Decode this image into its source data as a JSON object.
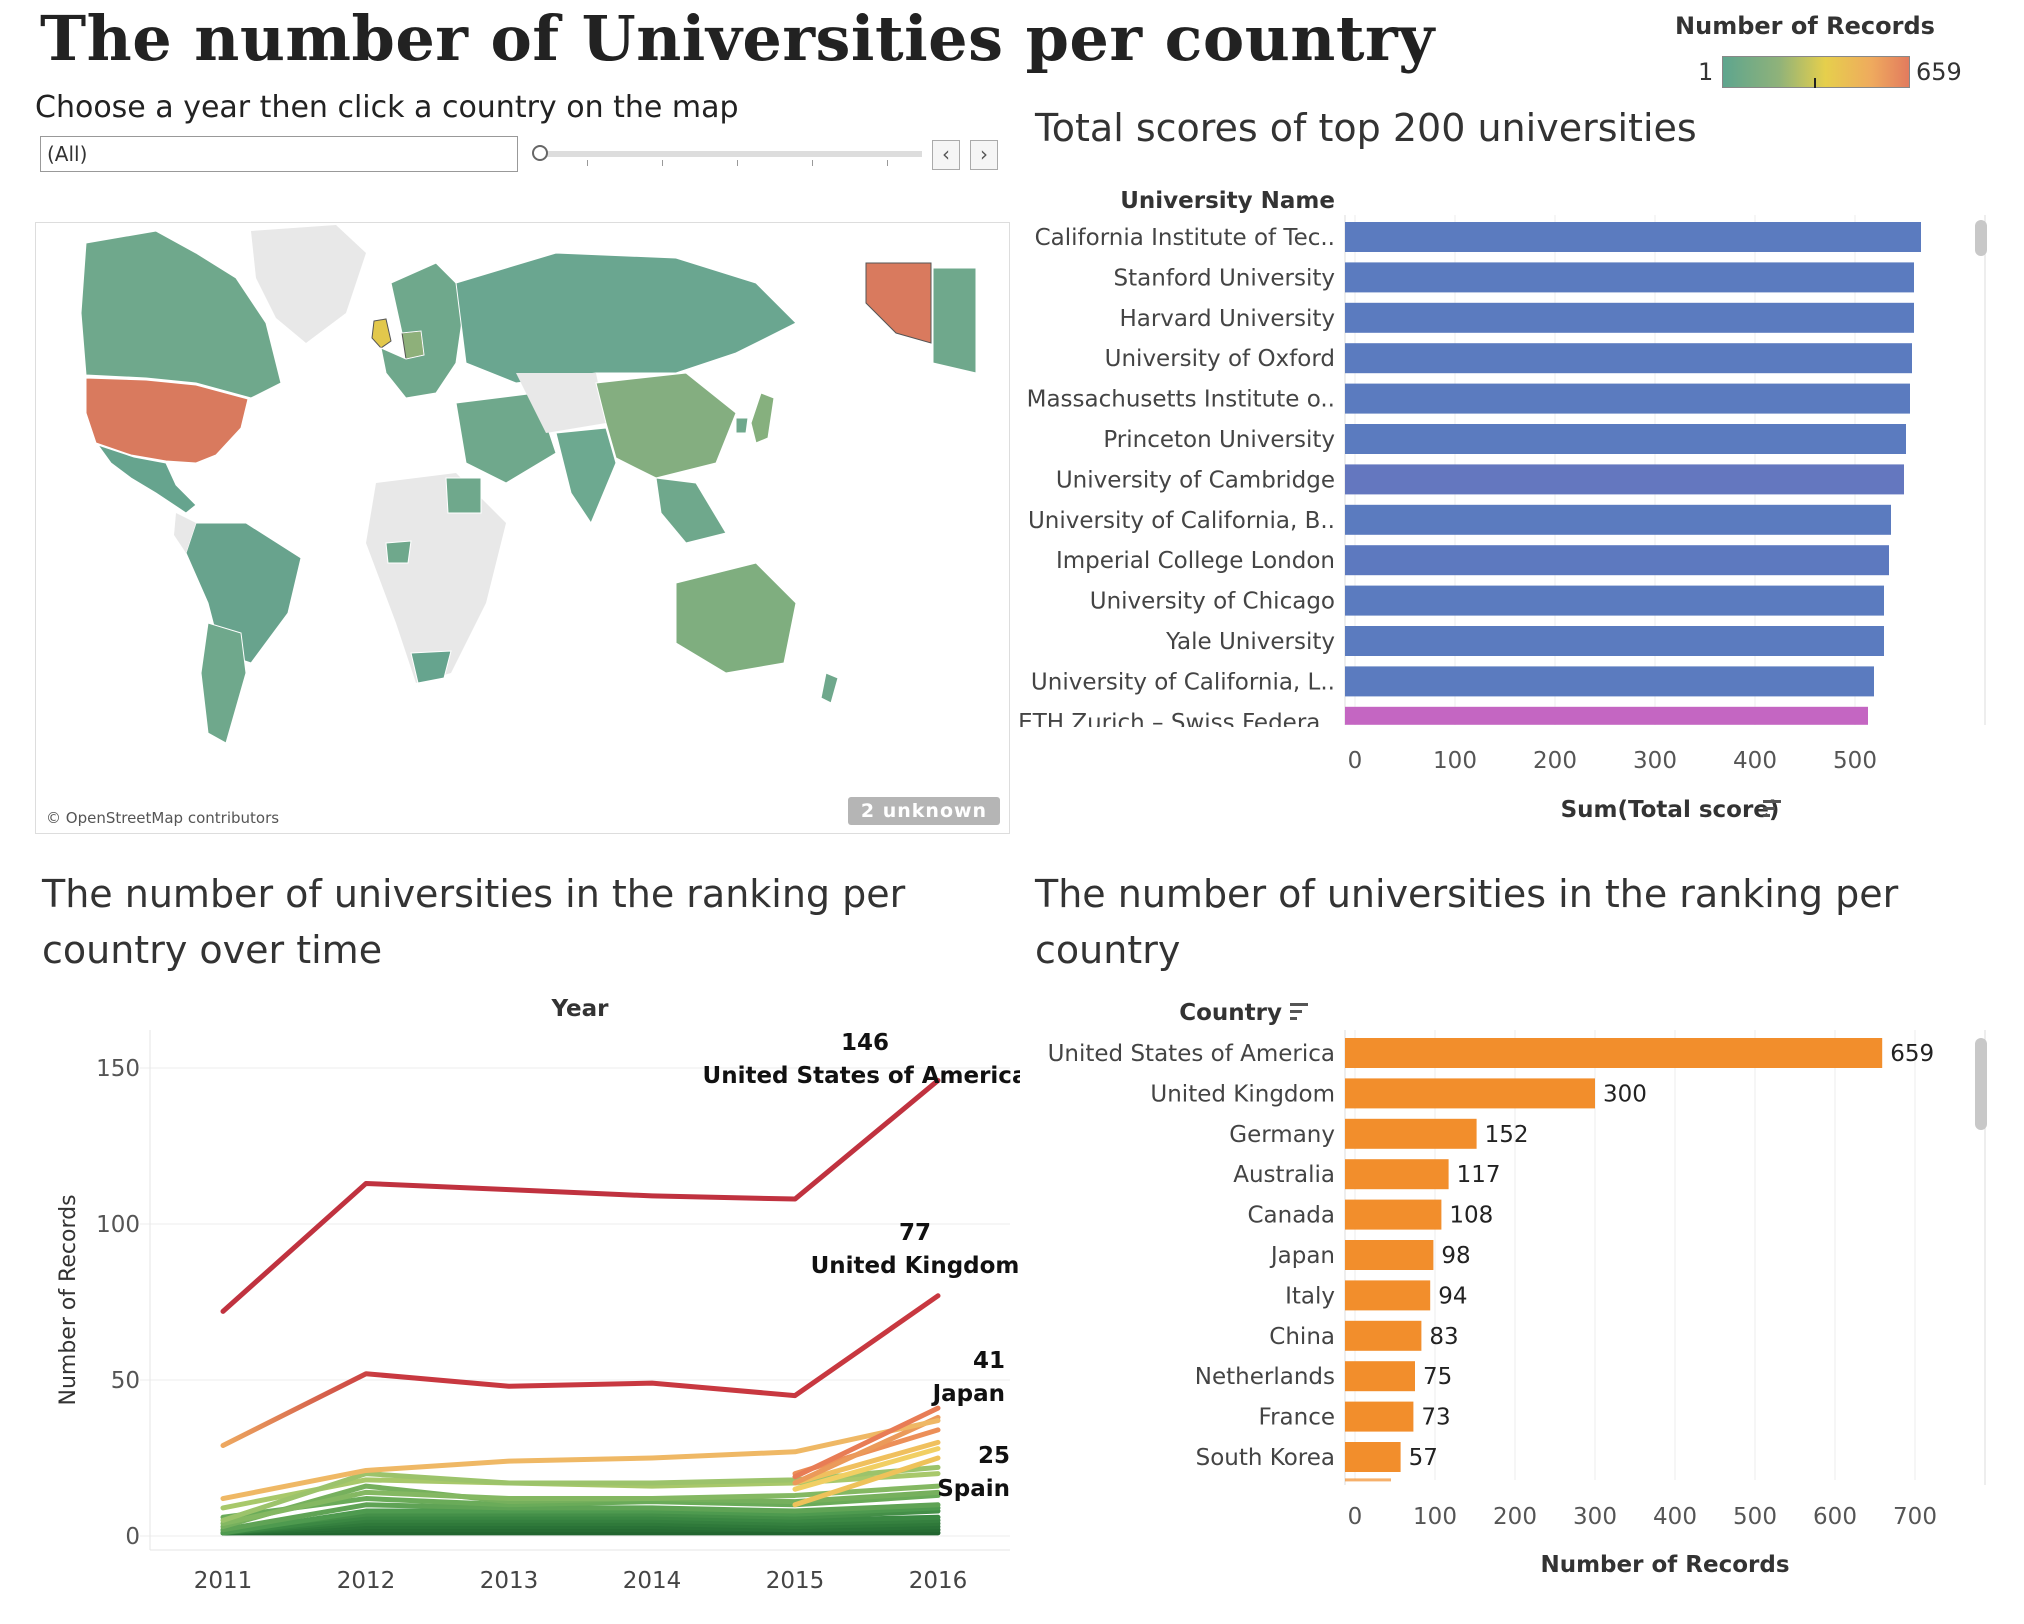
{
  "header": {
    "title": "The number of Universities per country"
  },
  "legend": {
    "title": "Number of Records",
    "min": "1",
    "max": "659"
  },
  "controls": {
    "instruction": "Choose a year then click a country on the map",
    "year_value": "(All)",
    "prev_icon": "chevron-left-icon",
    "next_icon": "chevron-right-icon"
  },
  "map": {
    "credit": "© OpenStreetMap contributors",
    "unknown_badge": "2 unknown"
  },
  "chart_data": [
    {
      "type": "bar",
      "title": "Total scores of top 200 universities",
      "ylabel": "University Name",
      "xlabel": "Sum(Total score)",
      "xlim": [
        0,
        600
      ],
      "x_ticks": [
        "0",
        "100",
        "200",
        "300",
        "400",
        "500"
      ],
      "grid": true,
      "categories": [
        "California Institute of Tec..",
        "Stanford University",
        "Harvard University",
        "University of Oxford",
        "Massachusetts Institute o..",
        "Princeton University",
        "University of Cambridge",
        "University of California, B..",
        "Imperial College London",
        "University of Chicago",
        "Yale University",
        "University of California, L..",
        "ETH Zurich – Swiss Federa.."
      ],
      "values": [
        566,
        559,
        559,
        557,
        555,
        551,
        549,
        536,
        534,
        529,
        529,
        519,
        513
      ],
      "colors": [
        "#5b7bbf",
        "#5b7bbf",
        "#5b7bbf",
        "#5b7bbf",
        "#5b7bbf",
        "#5b7bbf",
        "#6477bf",
        "#5b7bbf",
        "#5d79bf",
        "#5b7bbf",
        "#5b7bbf",
        "#5b7bbf",
        "#c466c2"
      ]
    },
    {
      "type": "line",
      "title": "The number of universities in the ranking per country over time",
      "xlabel": "Year",
      "ylabel": "Number of Records",
      "x": [
        "2011",
        "2012",
        "2013",
        "2014",
        "2015",
        "2016"
      ],
      "ylim": [
        0,
        150
      ],
      "y_ticks": [
        "0",
        "50",
        "100",
        "150"
      ],
      "grid": true,
      "series": [
        {
          "name": "United States of America",
          "values": [
            72,
            113,
            111,
            109,
            108,
            146
          ],
          "color": "#c0323f",
          "end_label": "146"
        },
        {
          "name": "United Kingdom",
          "values": [
            29,
            52,
            48,
            49,
            45,
            77
          ],
          "color": "#c83840",
          "start_color": "#eda860",
          "end_label": "77"
        },
        {
          "name": "Japan",
          "values": [
            null,
            null,
            null,
            null,
            19,
            41
          ],
          "color": "#e87c55",
          "end_label": "41"
        },
        {
          "name": "Spain",
          "values": [
            null,
            null,
            null,
            null,
            10,
            25
          ],
          "color": "#eec25a",
          "end_label": "25"
        },
        {
          "values": [
            12,
            21,
            24,
            25,
            27,
            37
          ],
          "color": "#efb865"
        },
        {
          "values": [
            null,
            null,
            null,
            null,
            17,
            38
          ],
          "color": "#eb9a5a"
        },
        {
          "values": [
            null,
            null,
            null,
            null,
            20,
            34
          ],
          "color": "#ec8f58"
        },
        {
          "values": [
            null,
            null,
            null,
            null,
            17,
            30
          ],
          "color": "#f0c05e"
        },
        {
          "values": [
            null,
            null,
            null,
            null,
            15,
            28
          ],
          "color": "#f1cf63"
        },
        {
          "values": [
            5,
            20,
            17,
            17,
            18,
            22
          ],
          "color": "#9cc36b"
        },
        {
          "values": [
            9,
            18,
            17,
            16,
            17,
            20
          ],
          "color": "#a8c86a"
        },
        {
          "values": [
            4,
            14,
            12,
            12,
            13,
            16
          ],
          "color": "#84b862"
        },
        {
          "values": [
            3,
            16,
            11,
            12,
            11,
            14
          ],
          "color": "#76b05d"
        },
        {
          "values": [
            6,
            12,
            10,
            11,
            10,
            13
          ],
          "color": "#6aab59"
        },
        {
          "values": [
            2,
            10,
            9,
            9,
            8,
            10
          ],
          "color": "#5fa355"
        },
        {
          "values": [
            1,
            8,
            8,
            8,
            7,
            9
          ],
          "color": "#4e9a4f"
        },
        {
          "values": [
            2,
            7,
            7,
            7,
            6,
            8
          ],
          "color": "#448f48"
        },
        {
          "values": [
            1,
            6,
            6,
            6,
            5,
            6
          ],
          "color": "#3b8843"
        },
        {
          "values": [
            1,
            5,
            5,
            5,
            4,
            5
          ],
          "color": "#35803f"
        },
        {
          "values": [
            1,
            4,
            4,
            4,
            3,
            4
          ],
          "color": "#2f793a"
        },
        {
          "values": [
            1,
            3,
            3,
            3,
            2,
            3
          ],
          "color": "#2a7237"
        },
        {
          "values": [
            1,
            2,
            2,
            2,
            2,
            2
          ],
          "color": "#266c33"
        },
        {
          "values": [
            1,
            1,
            1,
            1,
            1,
            1
          ],
          "color": "#226530"
        }
      ]
    },
    {
      "type": "bar",
      "title": "The number of universities in the ranking per country",
      "ylabel": "Country",
      "xlabel": "Number of Records",
      "xlim": [
        0,
        760
      ],
      "x_ticks": [
        "0",
        "100",
        "200",
        "300",
        "400",
        "500",
        "600",
        "700"
      ],
      "grid": true,
      "color": "#f28e2c",
      "categories": [
        "United States of America",
        "United Kingdom",
        "Germany",
        "Australia",
        "Canada",
        "Japan",
        "Italy",
        "China",
        "Netherlands",
        "France",
        "South Korea"
      ],
      "values": [
        659,
        300,
        152,
        117,
        108,
        98,
        94,
        83,
        75,
        73,
        57
      ],
      "value_labels": [
        "659",
        "300",
        "152",
        "117",
        "108",
        "98",
        "94",
        "83",
        "75",
        "73",
        "57"
      ]
    }
  ]
}
